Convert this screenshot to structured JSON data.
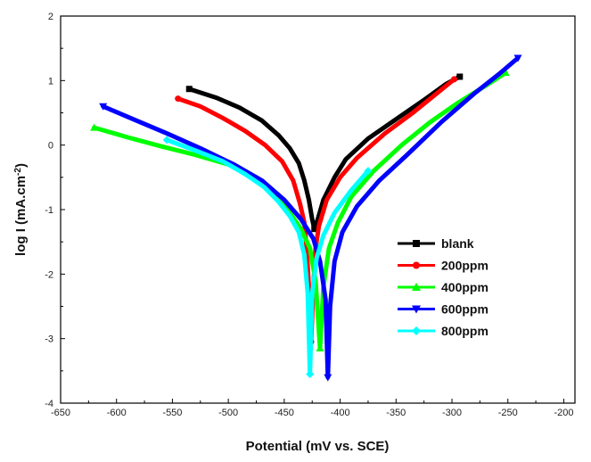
{
  "chart_data": {
    "type": "line",
    "xlabel": "Potential (mV vs. SCE)",
    "ylabel_text": "log I (mA.cm",
    "ylabel_sup": "-2",
    "ylabel_close": ")",
    "xlim": [
      -650,
      -190
    ],
    "ylim": [
      -4,
      2
    ],
    "xticks": [
      -650,
      -600,
      -550,
      -500,
      -450,
      -400,
      -350,
      -300,
      -250,
      -200
    ],
    "yticks": [
      -4,
      -3,
      -2,
      -1,
      0,
      1,
      2
    ],
    "grid": false,
    "legend_position": "lower-right",
    "series": [
      {
        "name": "blank",
        "color": "#000000",
        "marker": "square",
        "points": [
          [
            -535,
            0.87
          ],
          [
            -510,
            0.73
          ],
          [
            -490,
            0.58
          ],
          [
            -470,
            0.38
          ],
          [
            -455,
            0.15
          ],
          [
            -445,
            -0.05
          ],
          [
            -437,
            -0.28
          ],
          [
            -432,
            -0.55
          ],
          [
            -428,
            -0.85
          ],
          [
            -425,
            -1.15
          ],
          [
            -423,
            -1.3
          ],
          [
            -420,
            -1.15
          ],
          [
            -415,
            -0.85
          ],
          [
            -405,
            -0.5
          ],
          [
            -395,
            -0.22
          ],
          [
            -375,
            0.1
          ],
          [
            -350,
            0.4
          ],
          [
            -325,
            0.7
          ],
          [
            -305,
            0.95
          ],
          [
            -293,
            1.06
          ]
        ]
      },
      {
        "name": "200ppm",
        "color": "#ff0000",
        "marker": "circle",
        "points": [
          [
            -545,
            0.72
          ],
          [
            -525,
            0.6
          ],
          [
            -505,
            0.42
          ],
          [
            -485,
            0.22
          ],
          [
            -467,
            0.0
          ],
          [
            -452,
            -0.25
          ],
          [
            -442,
            -0.55
          ],
          [
            -436,
            -0.9
          ],
          [
            -432,
            -1.2
          ],
          [
            -430,
            -1.6
          ],
          [
            -428,
            -2.2
          ],
          [
            -426,
            -3.05
          ],
          [
            -424,
            -2.2
          ],
          [
            -422,
            -1.6
          ],
          [
            -419,
            -1.25
          ],
          [
            -412,
            -0.85
          ],
          [
            -400,
            -0.5
          ],
          [
            -385,
            -0.2
          ],
          [
            -360,
            0.18
          ],
          [
            -335,
            0.5
          ],
          [
            -315,
            0.78
          ],
          [
            -298,
            1.02
          ]
        ]
      },
      {
        "name": "400ppm",
        "color": "#00ff00",
        "marker": "triangle-up",
        "points": [
          [
            -620,
            0.27
          ],
          [
            -590,
            0.12
          ],
          [
            -560,
            -0.02
          ],
          [
            -530,
            -0.15
          ],
          [
            -500,
            -0.3
          ],
          [
            -475,
            -0.5
          ],
          [
            -458,
            -0.75
          ],
          [
            -445,
            -1.05
          ],
          [
            -435,
            -1.3
          ],
          [
            -427,
            -1.6
          ],
          [
            -422,
            -2.1
          ],
          [
            -418,
            -3.15
          ],
          [
            -415,
            -2.2
          ],
          [
            -410,
            -1.6
          ],
          [
            -402,
            -1.2
          ],
          [
            -390,
            -0.8
          ],
          [
            -370,
            -0.4
          ],
          [
            -345,
            0.0
          ],
          [
            -320,
            0.35
          ],
          [
            -295,
            0.65
          ],
          [
            -270,
            0.92
          ],
          [
            -252,
            1.12
          ]
        ]
      },
      {
        "name": "600ppm",
        "color": "#0000ff",
        "marker": "triangle-down",
        "points": [
          [
            -612,
            0.6
          ],
          [
            -585,
            0.4
          ],
          [
            -555,
            0.18
          ],
          [
            -525,
            -0.05
          ],
          [
            -495,
            -0.3
          ],
          [
            -470,
            -0.55
          ],
          [
            -450,
            -0.85
          ],
          [
            -435,
            -1.15
          ],
          [
            -424,
            -1.45
          ],
          [
            -418,
            -1.8
          ],
          [
            -413,
            -2.4
          ],
          [
            -411,
            -3.6
          ],
          [
            -409,
            -2.5
          ],
          [
            -405,
            -1.8
          ],
          [
            -398,
            -1.35
          ],
          [
            -385,
            -0.95
          ],
          [
            -365,
            -0.55
          ],
          [
            -340,
            -0.15
          ],
          [
            -310,
            0.35
          ],
          [
            -280,
            0.8
          ],
          [
            -258,
            1.1
          ],
          [
            -241,
            1.35
          ]
        ]
      },
      {
        "name": "800ppm",
        "color": "#00ffff",
        "marker": "diamond",
        "points": [
          [
            -555,
            0.08
          ],
          [
            -530,
            -0.08
          ],
          [
            -505,
            -0.25
          ],
          [
            -485,
            -0.45
          ],
          [
            -468,
            -0.65
          ],
          [
            -455,
            -0.88
          ],
          [
            -445,
            -1.1
          ],
          [
            -437,
            -1.35
          ],
          [
            -432,
            -1.7
          ],
          [
            -429,
            -2.3
          ],
          [
            -427,
            -3.55
          ],
          [
            -425,
            -2.3
          ],
          [
            -421,
            -1.75
          ],
          [
            -415,
            -1.4
          ],
          [
            -405,
            -1.05
          ],
          [
            -390,
            -0.7
          ],
          [
            -375,
            -0.4
          ]
        ]
      }
    ]
  }
}
